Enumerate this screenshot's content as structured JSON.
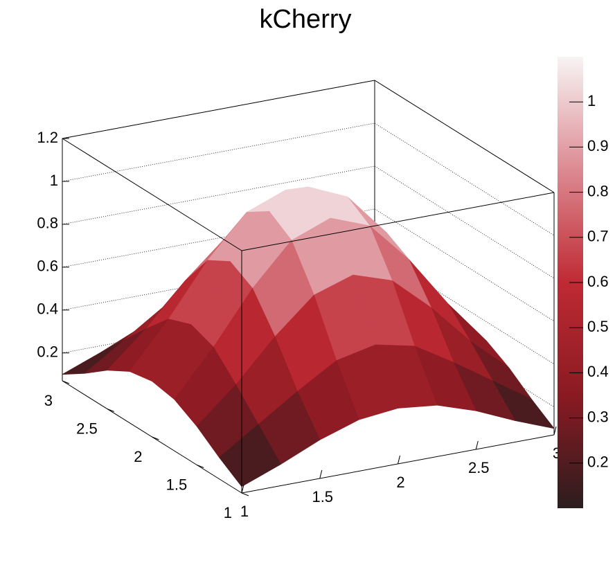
{
  "chart_data": {
    "type": "surface",
    "title": "kCherry",
    "x": [
      1,
      1.25,
      1.5,
      1.75,
      2,
      2.25,
      2.5,
      2.75,
      3
    ],
    "y": [
      1,
      1.25,
      1.5,
      1.75,
      2,
      2.25,
      2.5,
      2.75,
      3
    ],
    "z": [
      [
        0.1,
        0.17,
        0.25,
        0.31,
        0.33,
        0.31,
        0.25,
        0.17,
        0.1
      ],
      [
        0.17,
        0.29,
        0.41,
        0.52,
        0.56,
        0.52,
        0.41,
        0.29,
        0.17
      ],
      [
        0.25,
        0.41,
        0.6,
        0.76,
        0.82,
        0.76,
        0.6,
        0.41,
        0.25
      ],
      [
        0.31,
        0.52,
        0.76,
        0.95,
        1.02,
        0.95,
        0.76,
        0.52,
        0.31
      ],
      [
        0.33,
        0.56,
        0.82,
        1.02,
        1.1,
        1.02,
        0.82,
        0.56,
        0.33
      ],
      [
        0.31,
        0.52,
        0.76,
        0.95,
        1.02,
        0.95,
        0.76,
        0.52,
        0.31
      ],
      [
        0.25,
        0.41,
        0.6,
        0.76,
        0.82,
        0.76,
        0.6,
        0.41,
        0.25
      ],
      [
        0.17,
        0.29,
        0.41,
        0.52,
        0.56,
        0.52,
        0.41,
        0.29,
        0.17
      ],
      [
        0.1,
        0.17,
        0.25,
        0.31,
        0.33,
        0.31,
        0.25,
        0.17,
        0.1
      ]
    ],
    "xlim": [
      1,
      3
    ],
    "xticks": [
      1,
      1.5,
      2,
      2.5,
      3
    ],
    "ylim": [
      1,
      3
    ],
    "yticks": [
      1,
      1.5,
      2,
      2.5,
      3
    ],
    "zlim": [
      0.07,
      1.2
    ],
    "zticks": [
      0.2,
      0.4,
      0.6,
      0.8,
      1,
      1.2
    ],
    "colorbar_lim": [
      0.1,
      1.1
    ],
    "colorbar_ticks": [
      0.2,
      0.3,
      0.4,
      0.5,
      0.6,
      0.7,
      0.8,
      0.9,
      1
    ],
    "palette": [
      "#2b1d1e",
      "#8a1a22",
      "#bf2a33",
      "#dc8a92",
      "#f8f4f4"
    ],
    "grid": true
  }
}
